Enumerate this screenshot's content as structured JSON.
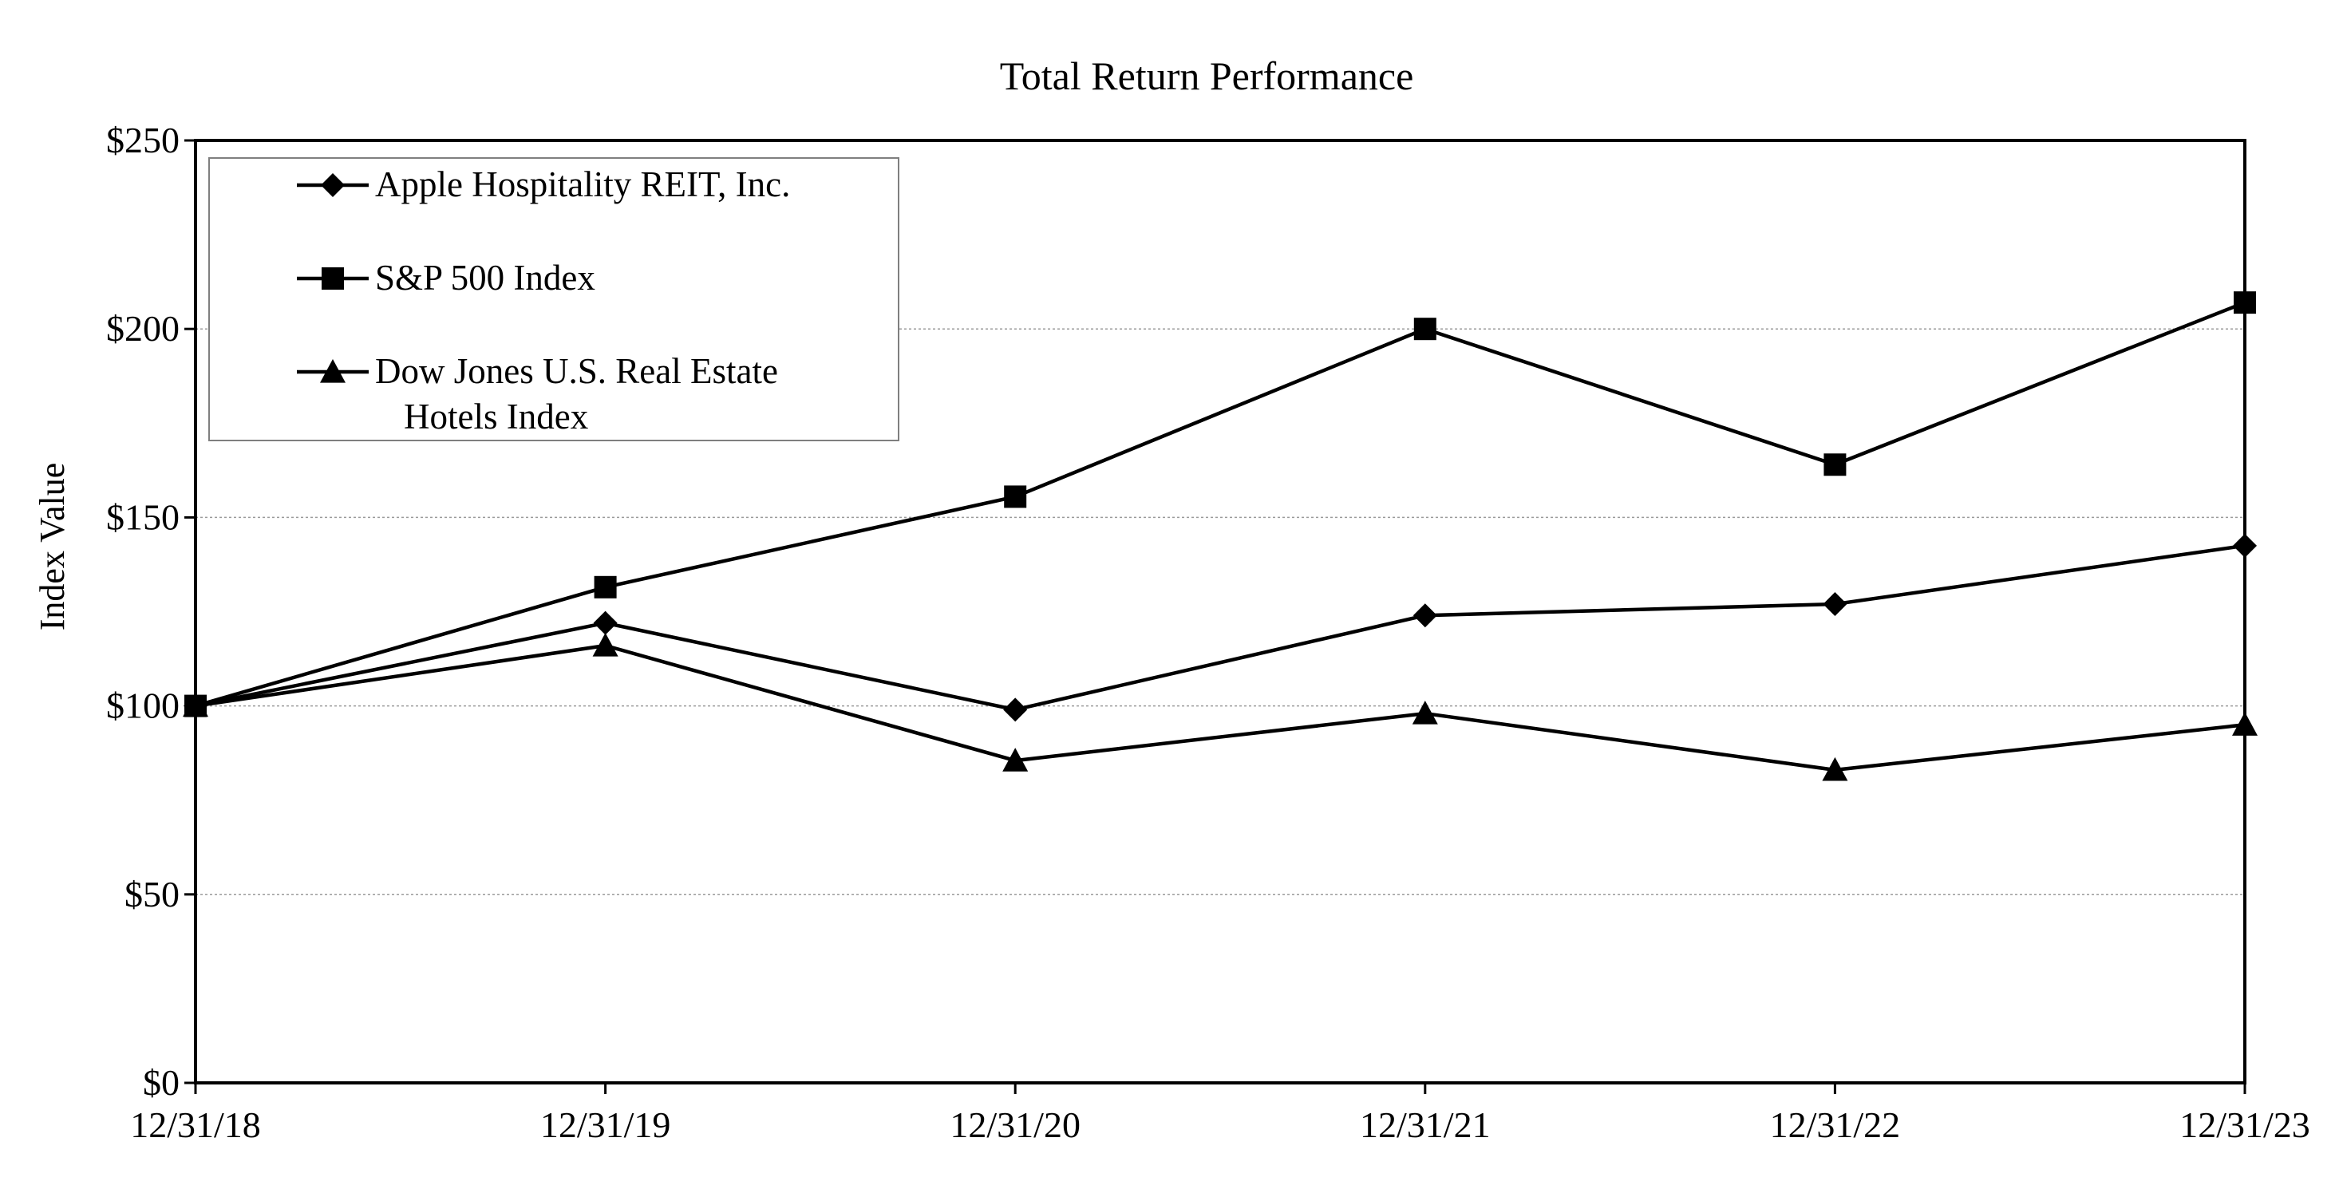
{
  "chart_data": {
    "type": "line",
    "title": "Total Return Performance",
    "xlabel": "",
    "ylabel": "Index Value",
    "categories": [
      "12/31/18",
      "12/31/19",
      "12/31/20",
      "12/31/21",
      "12/31/22",
      "12/31/23"
    ],
    "y_ticks": [
      "$0",
      "$50",
      "$100",
      "$150",
      "$200",
      "$250"
    ],
    "ylim": [
      0,
      250
    ],
    "grid": true,
    "legend_position": "top-left",
    "series": [
      {
        "name": "Apple Hospitality REIT, Inc.",
        "name_lines": [
          "Apple Hospitality REIT, Inc."
        ],
        "marker": "diamond",
        "color": "#000000",
        "values": [
          100,
          122,
          99,
          124,
          127,
          142.5
        ]
      },
      {
        "name": "S&P 500 Index",
        "name_lines": [
          "S&P 500 Index"
        ],
        "marker": "square",
        "color": "#000000",
        "values": [
          100,
          131.5,
          155.5,
          200,
          164,
          207
        ]
      },
      {
        "name": "Dow Jones U.S. Real Estate Hotels Index",
        "name_lines": [
          "Dow Jones U.S. Real Estate",
          "Hotels Index"
        ],
        "marker": "triangle",
        "color": "#000000",
        "values": [
          100,
          116,
          85.5,
          98,
          83,
          95
        ]
      }
    ]
  }
}
